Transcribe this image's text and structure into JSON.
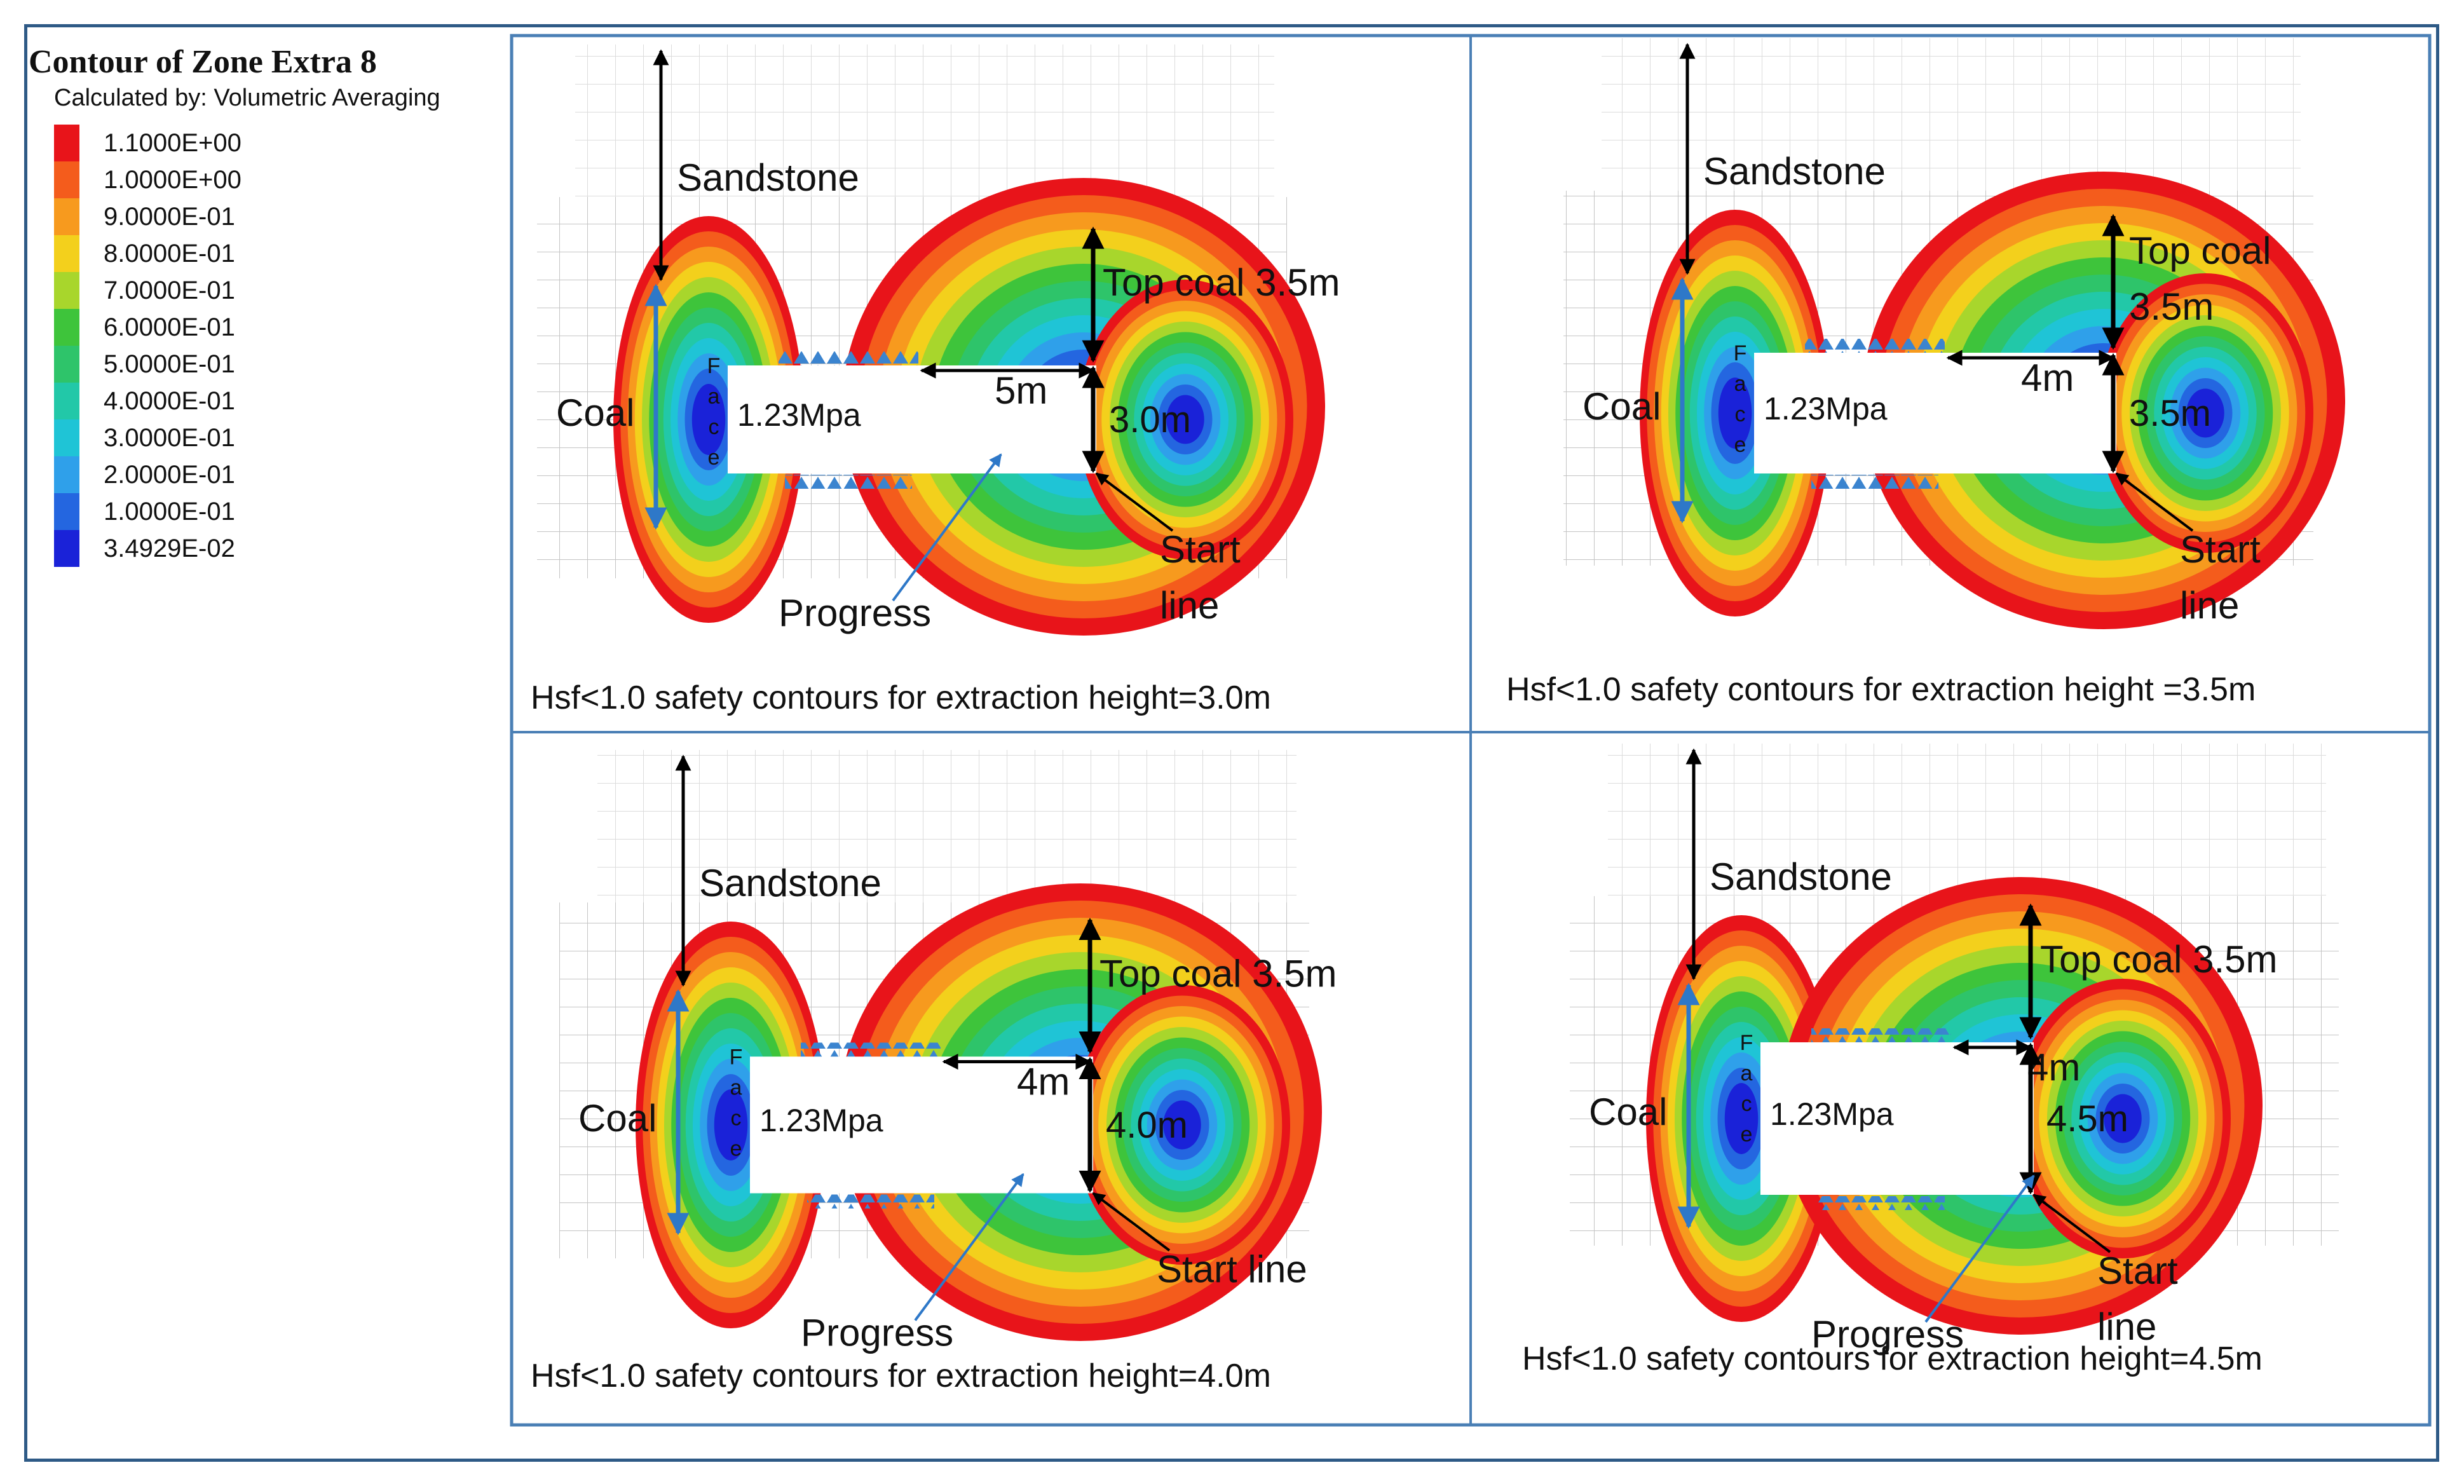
{
  "legend": {
    "title": "Contour of Zone Extra 8",
    "subtitle": "Calculated by: Volumetric Averaging",
    "items": [
      {
        "label": "1.1000E+00",
        "color": "#e8141a"
      },
      {
        "label": "1.0000E+00",
        "color": "#f45c1c"
      },
      {
        "label": "9.0000E-01",
        "color": "#f79a1e"
      },
      {
        "label": "8.0000E-01",
        "color": "#f3d01c"
      },
      {
        "label": "7.0000E-01",
        "color": "#a8d62c"
      },
      {
        "label": "6.0000E-01",
        "color": "#3ec43b"
      },
      {
        "label": "5.0000E-01",
        "color": "#2ec46a"
      },
      {
        "label": "4.0000E-01",
        "color": "#22c8a8"
      },
      {
        "label": "3.0000E-01",
        "color": "#1fc4d6"
      },
      {
        "label": "2.0000E-01",
        "color": "#2fa0ea"
      },
      {
        "label": "1.0000E-01",
        "color": "#2466e0"
      },
      {
        "label": "3.4929E-02",
        "color": "#1a22d8"
      }
    ]
  },
  "panels": [
    {
      "caption": "Hsf<1.0 safety contours for extraction height=3.0m",
      "sandstone": "Sandstone",
      "coal": "Coal",
      "face": [
        "F",
        "a",
        "c",
        "e"
      ],
      "pressure": "1.23Mpa",
      "width": "5m",
      "top_coal": "Top coal 3.5m",
      "height": "3.0m",
      "start": [
        "Start",
        "line"
      ],
      "progress": "Progress"
    },
    {
      "caption": "Hsf<1.0 safety contours for extraction height =3.5m",
      "sandstone": "Sandstone",
      "coal": "Coal",
      "face": [
        "F",
        "a",
        "c",
        "e"
      ],
      "pressure": "1.23Mpa",
      "width": "4m",
      "top_coal": [
        "Top coal",
        "3.5m"
      ],
      "height": "3.5m",
      "start": [
        "Start",
        "line"
      ]
    },
    {
      "caption": "Hsf<1.0 safety contours for extraction height=4.0m",
      "sandstone": "Sandstone",
      "coal": "Coal",
      "face": [
        "F",
        "a",
        "c",
        "e"
      ],
      "pressure": "1.23Mpa",
      "width": "4m",
      "top_coal": "Top coal 3.5m",
      "height": "4.0m",
      "start": [
        "Start line"
      ],
      "progress": "Progress"
    },
    {
      "caption": "Hsf<1.0 safety contours for extraction height=4.5m",
      "sandstone": "Sandstone",
      "coal": "Coal",
      "face": [
        "F",
        "a",
        "c",
        "e"
      ],
      "pressure": "1.23Mpa",
      "width": "4m",
      "top_coal": "Top coal 3.5m",
      "height": "4.5m",
      "start": [
        "Start",
        "line"
      ],
      "progress": "Progress"
    }
  ]
}
